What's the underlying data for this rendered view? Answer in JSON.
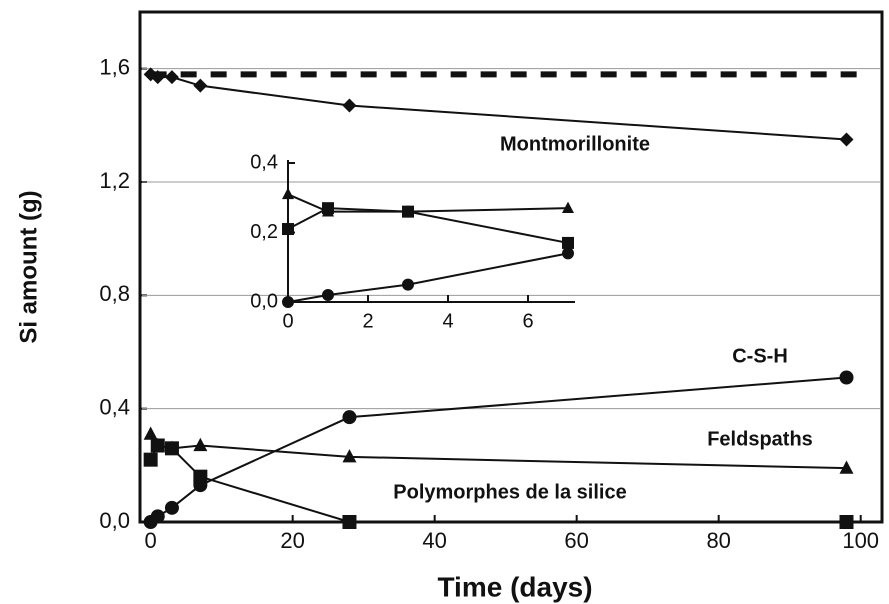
{
  "chart_data": [
    {
      "type": "line",
      "xlabel": "Time (days)",
      "ylabel": "Si amount (g)",
      "xlim": [
        -1.5,
        103
      ],
      "ylim": [
        0,
        1.8
      ],
      "xticks": [
        0,
        20,
        40,
        60,
        80,
        100
      ],
      "yticks": [
        {
          "value": 0,
          "label": "0,0"
        },
        {
          "value": 0.4,
          "label": "0,4"
        },
        {
          "value": 0.8,
          "label": "0,8"
        },
        {
          "value": 1.2,
          "label": "1,2"
        },
        {
          "value": 1.6,
          "label": "1,6"
        }
      ],
      "grid": true,
      "hline": {
        "value": 1.58,
        "style": "dashed",
        "color": "#111111"
      },
      "series": [
        {
          "name": "Montmorillonite",
          "color": "#111111",
          "marker": "diamond",
          "x": [
            0,
            1,
            3,
            7,
            28,
            98
          ],
          "values": [
            1.58,
            1.57,
            1.57,
            1.54,
            1.47,
            1.35
          ]
        },
        {
          "name": "C-S-H",
          "color": "#111111",
          "marker": "circle",
          "x": [
            0,
            1,
            3,
            7,
            28,
            98
          ],
          "values": [
            0,
            0.02,
            0.05,
            0.13,
            0.37,
            0.51
          ]
        },
        {
          "name": "Feldspaths",
          "color": "#111111",
          "marker": "triangle",
          "x": [
            0,
            1,
            3,
            7,
            28,
            98
          ],
          "values": [
            0.31,
            0.27,
            0.26,
            0.27,
            0.23,
            0.19
          ]
        },
        {
          "name": "Polymorphes de la silice",
          "color": "#111111",
          "marker": "square",
          "x": [
            0,
            1,
            3,
            7,
            28,
            98
          ],
          "values": [
            0.22,
            0.27,
            0.26,
            0.16,
            0,
            0
          ]
        }
      ]
    },
    {
      "type": "line",
      "xlim": [
        0,
        7.175
      ],
      "ylim": [
        0,
        0.4
      ],
      "xticks": [
        0,
        2,
        4,
        6
      ],
      "yticks": [
        {
          "value": 0,
          "label": "0,0"
        },
        {
          "value": 0.2,
          "label": "0,2"
        },
        {
          "value": 0.4,
          "label": "0,4"
        }
      ],
      "series": [
        {
          "color": "#111111",
          "marker": "circle",
          "x": [
            0,
            1,
            3,
            7
          ],
          "values": [
            0,
            0.02,
            0.05,
            0.14
          ]
        },
        {
          "color": "#111111",
          "marker": "triangle",
          "x": [
            0,
            1,
            3,
            7
          ],
          "values": [
            0.31,
            0.26,
            0.26,
            0.27
          ]
        },
        {
          "color": "#111111",
          "marker": "square",
          "x": [
            0,
            1,
            3,
            7
          ],
          "values": [
            0.21,
            0.27,
            0.26,
            0.17
          ]
        }
      ]
    }
  ]
}
